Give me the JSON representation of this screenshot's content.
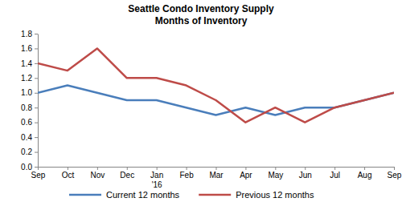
{
  "chart_data": {
    "type": "line",
    "title": "Seattle Condo Inventory Supply",
    "subtitle": "Months of Inventory",
    "categories": [
      "Sep",
      "Oct",
      "Nov",
      "Dec",
      "Jan\n'16",
      "Feb",
      "Mar",
      "Apr",
      "May",
      "Jun",
      "Jul",
      "Aug",
      "Sep"
    ],
    "series": [
      {
        "name": "Current 12 months",
        "color": "#4a7ebb",
        "values": [
          1.0,
          1.1,
          1.0,
          0.9,
          0.9,
          0.8,
          0.7,
          0.8,
          0.7,
          0.8,
          0.8,
          0.9,
          1.0
        ]
      },
      {
        "name": "Previous 12 months",
        "color": "#be4b48",
        "values": [
          1.4,
          1.3,
          1.6,
          1.2,
          1.2,
          1.1,
          0.9,
          0.6,
          0.8,
          0.6,
          0.8,
          0.9,
          1.0
        ]
      }
    ],
    "ylim": [
      0,
      1.8
    ],
    "yticks": [
      {
        "value": 0,
        "label": "0.0"
      },
      0.2,
      0.4,
      0.6,
      0.8,
      {
        "value": 1,
        "label": "1.0"
      },
      1.2,
      1.4,
      1.6,
      1.8
    ],
    "grid": false,
    "legend": "bottom"
  }
}
